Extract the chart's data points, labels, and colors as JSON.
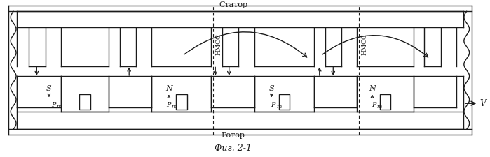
{
  "title": "Фиг. 2-1",
  "stator_label": "Статор",
  "rotor_label": "Ротор",
  "hmcc_label": "НМСС",
  "velocity_label": "V",
  "bg_color": "#ffffff",
  "line_color": "#1a1a1a",
  "fig_width": 6.99,
  "fig_height": 2.25,
  "dpi": 100
}
